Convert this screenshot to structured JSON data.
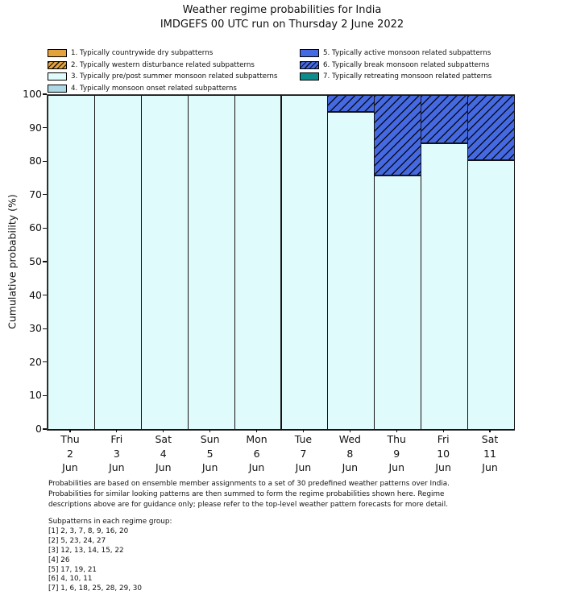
{
  "chart_data": {
    "type": "bar",
    "stacked": true,
    "title": "Weather regime probabilities for India",
    "subtitle": "IMDGEFS 00 UTC run on Thursday 2 June 2022",
    "ylabel": "Cumulative probability (%)",
    "ylim": [
      0,
      100
    ],
    "yticks": [
      0,
      10,
      20,
      30,
      40,
      50,
      60,
      70,
      80,
      90,
      100
    ],
    "grid": false,
    "legend_position": "top",
    "bar_edge_color": "#141414",
    "categories": [
      "Thu 2 Jun",
      "Fri 3 Jun",
      "Sat 4 Jun",
      "Sun 5 Jun",
      "Mon 6 Jun",
      "Tue 7 Jun",
      "Wed 8 Jun",
      "Thu 9 Jun",
      "Fri 10 Jun",
      "Sat 11 Jun"
    ],
    "series": [
      {
        "label": "1. Typically countrywide dry subpatterns",
        "color": "#E2A33D",
        "hatch": false,
        "legend_column": 0,
        "values": [
          0,
          0,
          0,
          0,
          0,
          0,
          0,
          0,
          0,
          0
        ]
      },
      {
        "label": "2. Typically western disturbance related subpatterns",
        "color": "#E2A33D",
        "hatch": true,
        "legend_column": 0,
        "values": [
          0,
          0,
          0,
          0,
          0,
          0,
          0,
          0,
          0,
          0
        ]
      },
      {
        "label": "3. Typically pre/post summer monsoon related subpatterns",
        "color": "#E0FBFB",
        "hatch": false,
        "legend_column": 0,
        "values": [
          100,
          100,
          100,
          100,
          100,
          100,
          95,
          76,
          85.5,
          80.5
        ]
      },
      {
        "label": "4. Typically monsoon onset related subpatterns",
        "color": "#ADD8E6",
        "hatch": false,
        "legend_column": 0,
        "values": [
          0,
          0,
          0,
          0,
          0,
          0,
          0,
          0,
          0,
          0
        ]
      },
      {
        "label": "5. Typically active monsoon related subpatterns",
        "color": "#4569E0",
        "hatch": false,
        "legend_column": 1,
        "values": [
          0,
          0,
          0,
          0,
          0,
          0,
          0,
          0,
          0,
          0
        ]
      },
      {
        "label": "6. Typically break monsoon related subpatterns",
        "color": "#4569E0",
        "hatch": true,
        "legend_column": 1,
        "values": [
          0,
          0,
          0,
          0,
          0,
          0,
          5,
          24,
          14.5,
          19.5
        ]
      },
      {
        "label": "7. Typically retreating monsoon related patterns",
        "color": "#0E8C8C",
        "hatch": false,
        "legend_column": 1,
        "values": [
          0,
          0,
          0,
          0,
          0,
          0,
          0,
          0,
          0,
          0
        ]
      }
    ]
  },
  "footnote": {
    "lines": [
      "Probabilities are based on ensemble member assignments to a set of 30 predefined weather patterns over India.",
      "Probabilities for similar looking patterns are then summed to form the regime probabilities shown here. Regime",
      "descriptions above are for guidance only; please refer to the top-level weather pattern forecasts for more detail."
    ]
  },
  "subpatterns": {
    "heading": "Subpatterns in each regime group:",
    "groups": [
      "[1] 2, 3, 7, 8, 9, 16, 20",
      "[2] 5, 23, 24, 27",
      "[3] 12, 13, 14, 15, 22",
      "[4] 26",
      "[5] 17, 19, 21",
      "[6] 4, 10, 11",
      "[7] 1, 6, 18, 25, 28, 29, 30"
    ]
  }
}
